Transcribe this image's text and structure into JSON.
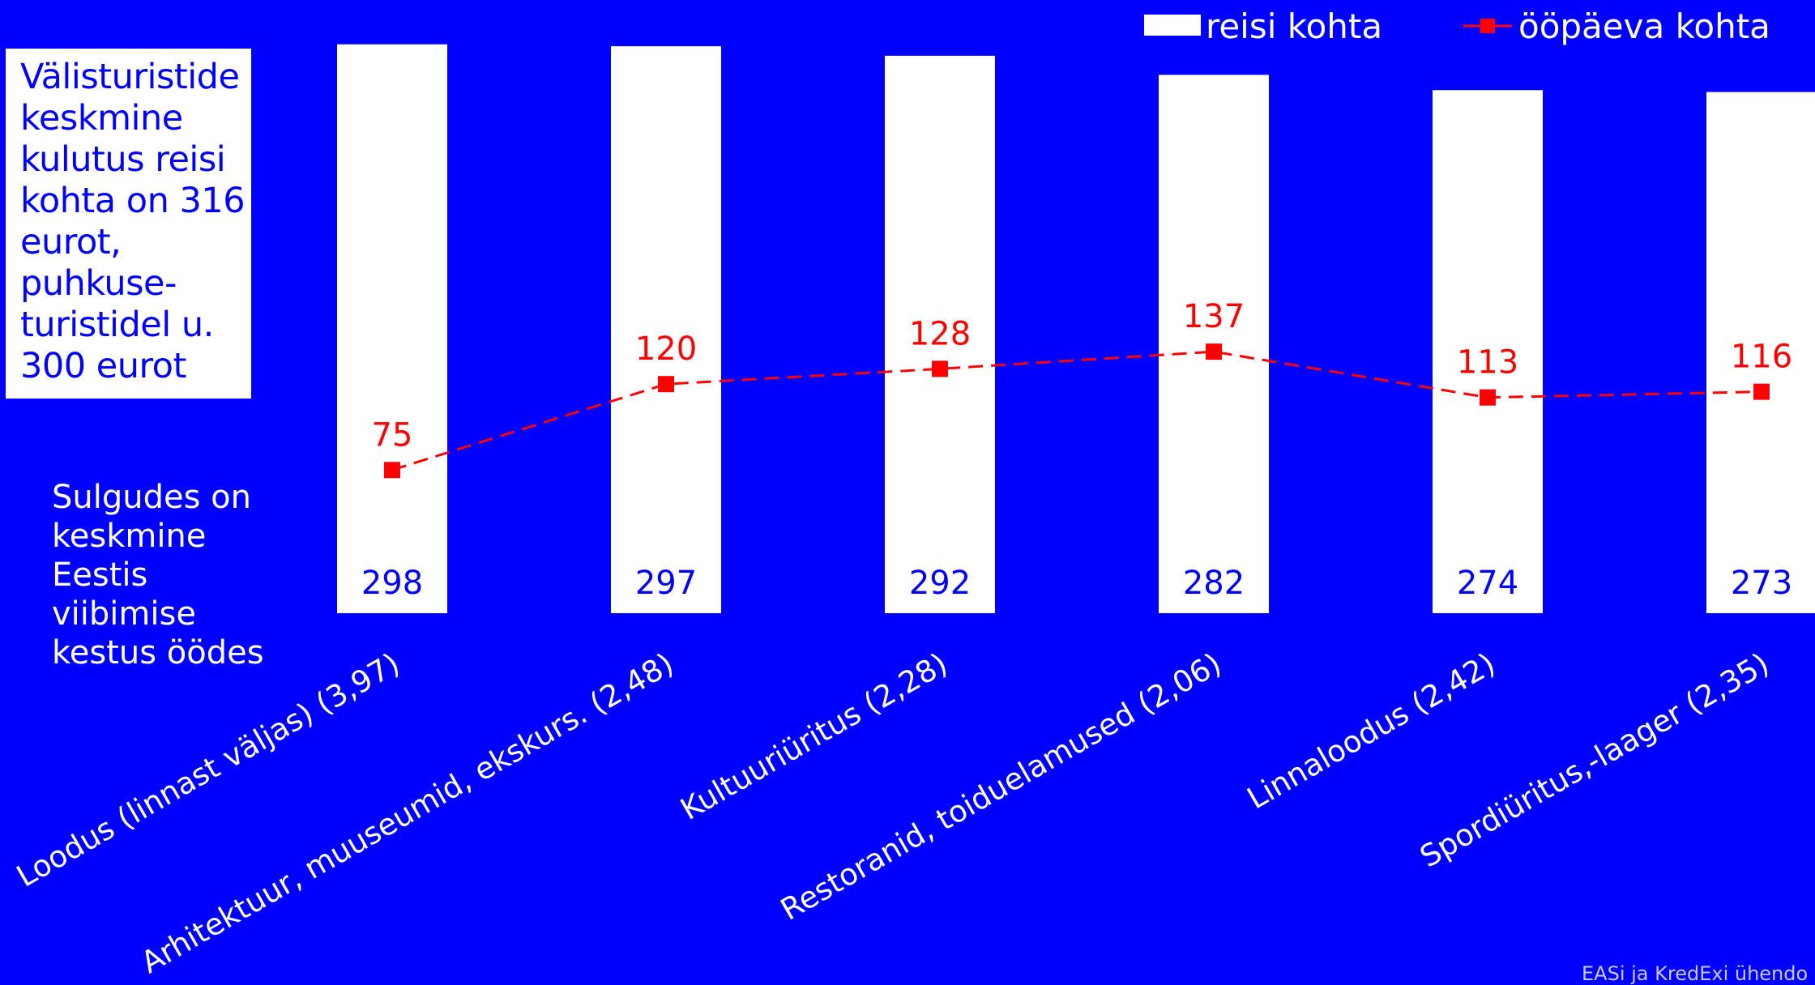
{
  "chart_data": {
    "type": "bar",
    "categories": [
      "Loodus (linnast väljas) (3,97)",
      "Arhitektuur, muuseumid, ekskurs. (2,48)",
      "Kultuuriüritus (2,28)",
      "Restoranid, toiduelamused (2,06)",
      "Linnaloodus (2,42)",
      "Spordiüritus,-laager (2,35)"
    ],
    "series": [
      {
        "name": "reisi kohta",
        "type": "bar",
        "values": [
          298,
          297,
          292,
          282,
          274,
          273
        ],
        "color": "#ffffff",
        "label_color": "#0000ff"
      },
      {
        "name": "ööpäeva kohta",
        "type": "line",
        "style": "dashed",
        "marker": "square",
        "values": [
          75,
          120,
          128,
          137,
          113,
          116
        ],
        "color": "#ff0000"
      }
    ],
    "bar_ylim": [
      0,
      300
    ],
    "line_ylim": [
      0,
      300
    ],
    "grid": false,
    "legend": "top-right",
    "background": "#0000ff"
  },
  "note_box": {
    "text": "Välisturistide\nkeskmine\nkulutus reisi\nkohta on 316\neurot,\npuhkuse-\nturistidel u.\n300 eurot"
  },
  "side_note": "Sulgudes on\nkeskmine\nEestis\nviibimise\nkestus öödes",
  "legend": {
    "bar_label": "reisi kohta",
    "line_label": "ööpäeva kohta"
  },
  "source_note": "EASi ja KredExi ühendо"
}
